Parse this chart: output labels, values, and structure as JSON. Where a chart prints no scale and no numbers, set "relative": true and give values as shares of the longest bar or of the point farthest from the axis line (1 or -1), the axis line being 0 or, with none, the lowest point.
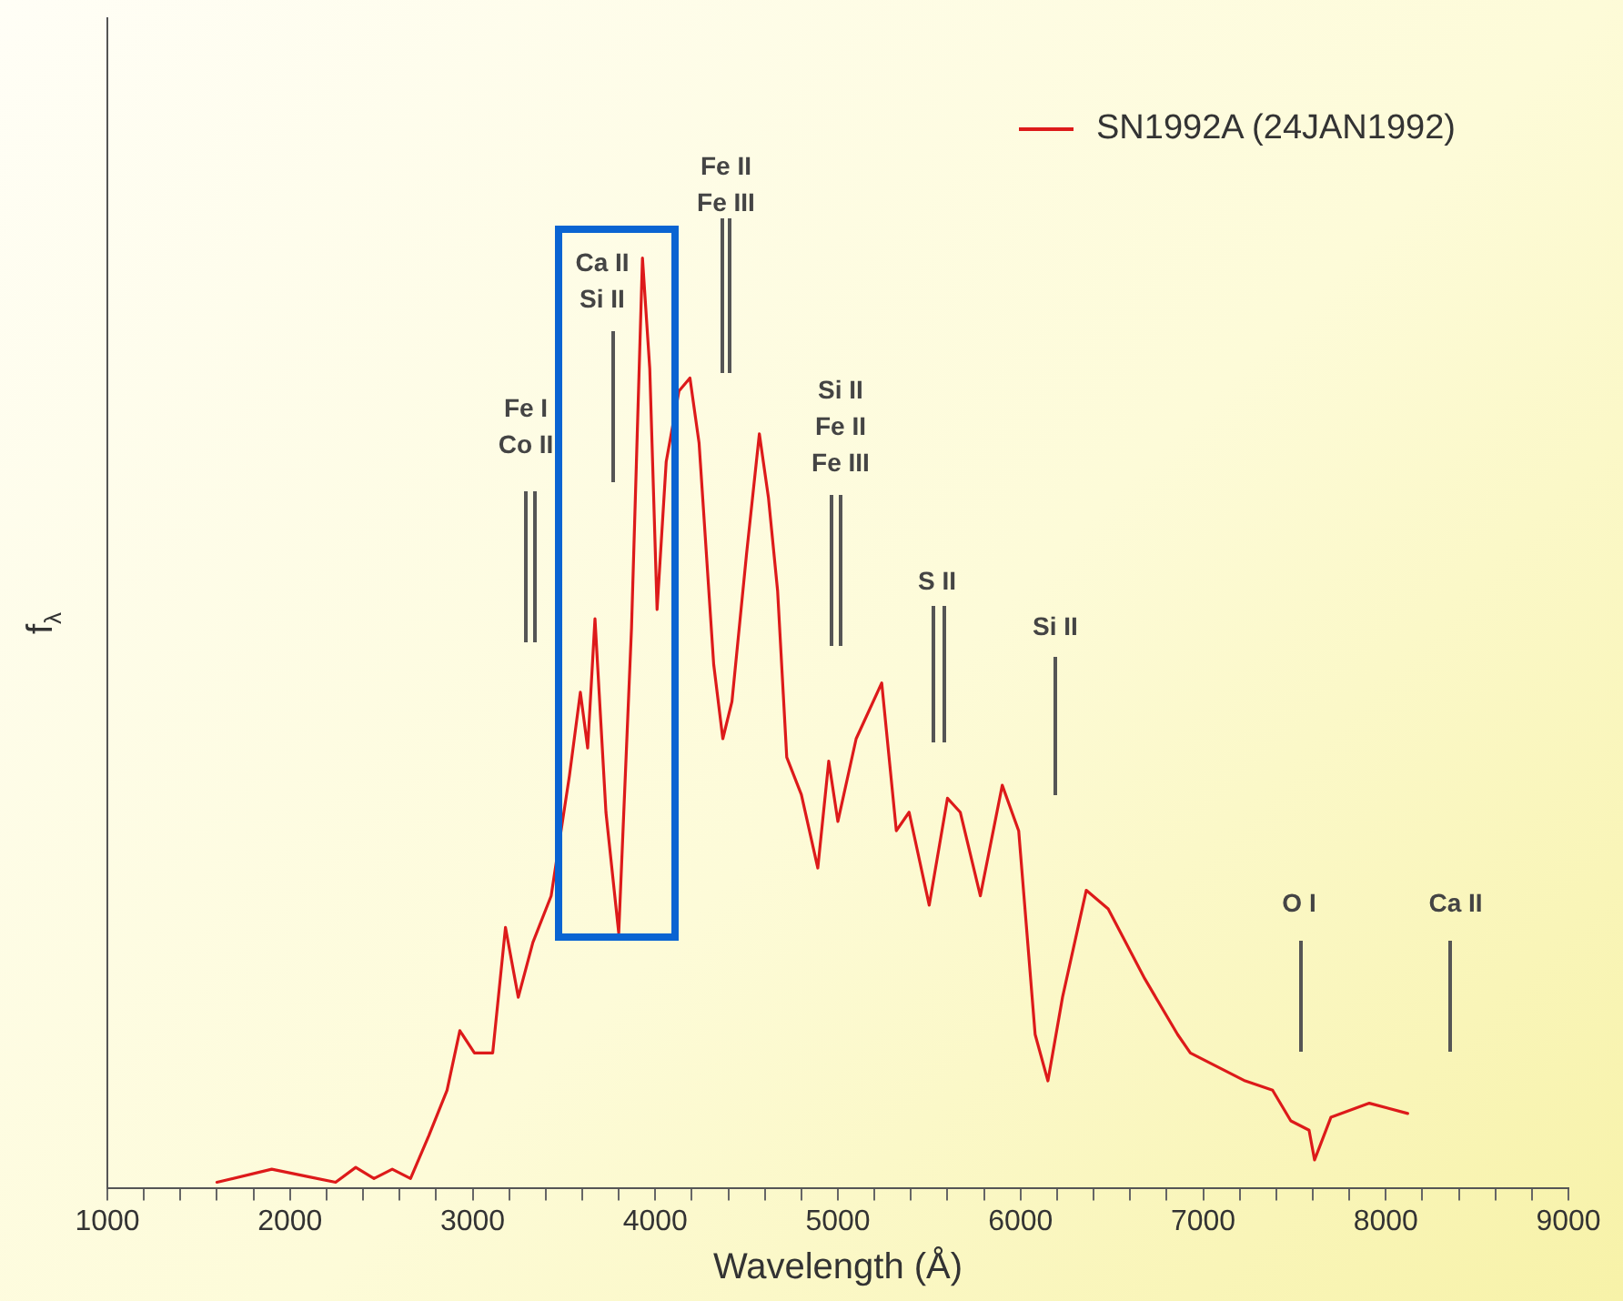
{
  "chart_data": {
    "type": "line",
    "relative": true,
    "xlabel": "Wavelength (Å)",
    "ylabel": "f$_{λ}$",
    "xlim": [
      1000,
      9000
    ],
    "xticks": [
      1000,
      {
        "value": 1200,
        "label": null
      },
      {
        "value": 1400,
        "label": null
      },
      {
        "value": 1600,
        "label": null
      },
      {
        "value": 1800,
        "label": null
      },
      2000,
      {
        "value": 2200,
        "label": null
      },
      {
        "value": 2400,
        "label": null
      },
      {
        "value": 2600,
        "label": null
      },
      {
        "value": 2800,
        "label": null
      },
      3000,
      {
        "value": 3200,
        "label": null
      },
      {
        "value": 3400,
        "label": null
      },
      {
        "value": 3600,
        "label": null
      },
      {
        "value": 3800,
        "label": null
      },
      4000,
      {
        "value": 4200,
        "label": null
      },
      {
        "value": 4400,
        "label": null
      },
      {
        "value": 4600,
        "label": null
      },
      {
        "value": 4800,
        "label": null
      },
      5000,
      {
        "value": 5200,
        "label": null
      },
      {
        "value": 5400,
        "label": null
      },
      {
        "value": 5600,
        "label": null
      },
      {
        "value": 5800,
        "label": null
      },
      6000,
      {
        "value": 6200,
        "label": null
      },
      {
        "value": 6400,
        "label": null
      },
      {
        "value": 6600,
        "label": null
      },
      {
        "value": 6800,
        "label": null
      },
      7000,
      {
        "value": 7200,
        "label": null
      },
      {
        "value": 7400,
        "label": null
      },
      {
        "value": 7600,
        "label": null
      },
      {
        "value": 7800,
        "label": null
      },
      8000,
      {
        "value": 8200,
        "label": null
      },
      {
        "value": 8400,
        "label": null
      },
      {
        "value": 8600,
        "label": null
      },
      {
        "value": 8800,
        "label": null
      },
      9000
    ],
    "x": [
      1600,
      1900,
      2100,
      2250,
      2360,
      2460,
      2560,
      2660,
      2760,
      2860,
      2930,
      3010,
      3110,
      3180,
      3250,
      3330,
      3430,
      3530,
      3590,
      3630,
      3670,
      3730,
      3800,
      3870,
      3930,
      3970,
      4010,
      4060,
      4130,
      4190,
      4240,
      4320,
      4370,
      4420,
      4500,
      4570,
      4620,
      4670,
      4720,
      4800,
      4890,
      4950,
      5000,
      5100,
      5240,
      5320,
      5390,
      5500,
      5600,
      5670,
      5780,
      5900,
      5990,
      6080,
      6150,
      6230,
      6360,
      6480,
      6680,
      6860,
      6930,
      7230,
      7380,
      7480,
      7580,
      7610,
      7700,
      7910,
      8120
    ],
    "series": [
      {
        "name": "SN1992A (24JAN1992)",
        "color": "#dd1a1a",
        "values": [
          0.006,
          0.02,
          0.012,
          0.006,
          0.022,
          0.01,
          0.02,
          0.01,
          0.056,
          0.105,
          0.169,
          0.145,
          0.145,
          0.28,
          0.205,
          0.264,
          0.314,
          0.443,
          0.533,
          0.473,
          0.612,
          0.404,
          0.274,
          0.602,
          1.0,
          0.881,
          0.622,
          0.781,
          0.857,
          0.871,
          0.801,
          0.563,
          0.483,
          0.523,
          0.682,
          0.811,
          0.742,
          0.642,
          0.463,
          0.423,
          0.344,
          0.459,
          0.394,
          0.483,
          0.543,
          0.384,
          0.404,
          0.304,
          0.419,
          0.404,
          0.314,
          0.433,
          0.384,
          0.165,
          0.115,
          0.205,
          0.32,
          0.3,
          0.225,
          0.165,
          0.145,
          0.115,
          0.105,
          0.072,
          0.062,
          0.03,
          0.076,
          0.091,
          0.08
        ]
      }
    ],
    "annotations": [
      "Fe I\nCo II",
      "Ca II\nSi II",
      "Fe II\nFe III",
      "Si II\nFe II\nFe III",
      "S II",
      "Si II",
      "O I",
      "Ca II"
    ],
    "grid": false,
    "legend": "top right",
    "marker": "none",
    "line_style": "solid"
  }
}
